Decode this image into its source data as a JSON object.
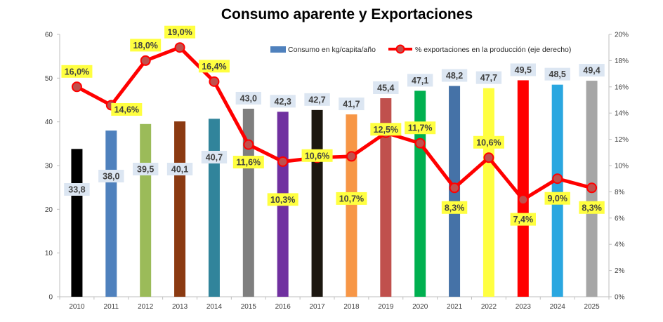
{
  "chart_data": {
    "type": "bar+line",
    "title": "Consumo aparente y Exportaciones",
    "categories": [
      "2010",
      "2011",
      "2012",
      "2013",
      "2014",
      "2015",
      "2016",
      "2017",
      "2018",
      "2019",
      "2020",
      "2021",
      "2022",
      "2023",
      "2024",
      "2025"
    ],
    "series": [
      {
        "name": "Consumo en kg/capita/año",
        "type": "bar",
        "axis": "left",
        "values": [
          33.8,
          38.0,
          39.5,
          40.1,
          40.7,
          43.0,
          42.3,
          42.7,
          41.7,
          45.4,
          47.1,
          48.2,
          47.7,
          49.5,
          48.5,
          49.4
        ],
        "labels": [
          "33,8",
          "38,0",
          "39,5",
          "40,1",
          "40,7",
          "43,0",
          "42,3",
          "42,7",
          "41,7",
          "45,4",
          "47,1",
          "48,2",
          "47,7",
          "49,5",
          "48,5",
          "49,4"
        ],
        "colors": [
          "#000000",
          "#4f81bd",
          "#9bbb59",
          "#8b3a12",
          "#31849b",
          "#7f7f7f",
          "#7030a0",
          "#1c1710",
          "#f79646",
          "#c0504d",
          "#00b050",
          "#4572a7",
          "#ffff40",
          "#ff0000",
          "#2aa7e0",
          "#a6a6a6"
        ],
        "label_bg": "#dce6f2"
      },
      {
        "name": "% exportaciones en la producción (eje derecho)",
        "type": "line",
        "axis": "right",
        "values": [
          16.0,
          14.6,
          18.0,
          19.0,
          16.4,
          11.6,
          10.3,
          10.6,
          10.7,
          12.5,
          11.7,
          8.3,
          10.6,
          7.4,
          9.0,
          8.3
        ],
        "labels": [
          "16,0%",
          "14,6%",
          "18,0%",
          "19,0%",
          "16,4%",
          "11,6%",
          "10,3%",
          "10,6%",
          "10,7%",
          "12,5%",
          "11,7%",
          "8,3%",
          "10,6%",
          "7,4%",
          "9,0%",
          "8,3%"
        ],
        "color": "#ff0000",
        "marker_color": "#c0504d",
        "label_bg": "#ffff40"
      }
    ],
    "left_axis": {
      "range": [
        0,
        60
      ],
      "ticks": [
        "0",
        "10",
        "20",
        "30",
        "40",
        "50",
        "60"
      ]
    },
    "right_axis": {
      "range": [
        0,
        20
      ],
      "ticks": [
        "0%",
        "2%",
        "4%",
        "6%",
        "8%",
        "10%",
        "12%",
        "14%",
        "16%",
        "18%",
        "20%"
      ]
    },
    "xlabel": "",
    "ylabel": "",
    "grid": false,
    "legend": "top-right"
  }
}
